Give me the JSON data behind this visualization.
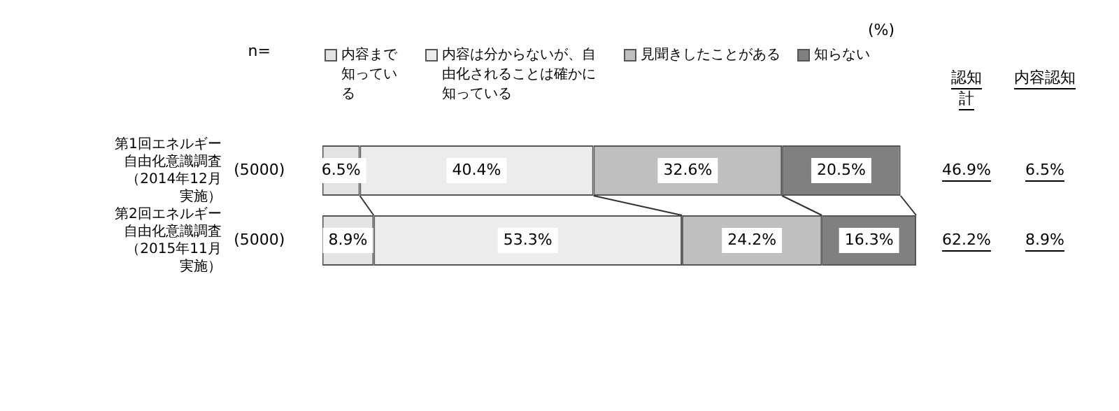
{
  "chart_data": {
    "type": "bar",
    "orientation": "horizontal",
    "stacked": true,
    "categories": [
      "第1回エネルギー自由化意識調査（2014年12月実施）",
      "第2回エネルギー自由化意識調査（2015年11月実施）"
    ],
    "series": [
      {
        "name": "内容まで知っている",
        "color": "#e3e3e3",
        "values": [
          6.5,
          8.9
        ],
        "value_labels": [
          "6.5%",
          "8.9%"
        ]
      },
      {
        "name": "内容は分からないが、自由化されることは確かに知っている",
        "color": "#ececec",
        "values": [
          40.4,
          53.3
        ],
        "value_labels": [
          "40.4%",
          "53.3%"
        ]
      },
      {
        "name": "見聞きしたことがある",
        "color": "#bfbfbf",
        "values": [
          32.6,
          24.2
        ],
        "value_labels": [
          "32.6%",
          "24.2%"
        ]
      },
      {
        "name": "知らない",
        "color": "#808080",
        "values": [
          20.5,
          16.3
        ],
        "value_labels": [
          "20.5%",
          "16.3%"
        ]
      }
    ],
    "xlim": [
      0,
      102.7
    ],
    "tick_labels": "y",
    "legend": "top",
    "annotations": [
      "n=",
      "(5000)",
      "(5000)",
      "(%)",
      "認知計",
      "46.9%",
      "62.2%",
      "内容認知",
      "6.5%",
      "8.9%"
    ]
  }
}
